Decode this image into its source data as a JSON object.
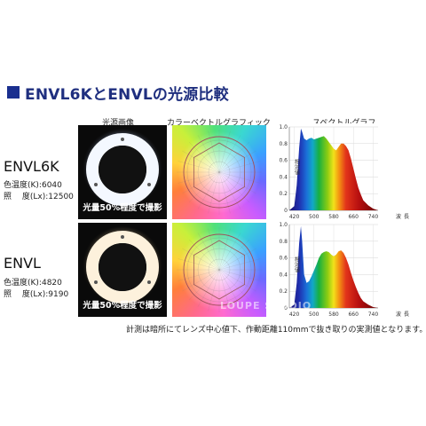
{
  "title": "ENVL6KとENVLの光源比較",
  "columns": {
    "photo": "光源画像",
    "color_graphic": "カラーベクトルグラフィック",
    "spectrum": "スペクトルグラフ"
  },
  "models": [
    {
      "name": "ENVL6K",
      "color_temp_label": "色温度(K):",
      "color_temp_value": "6040",
      "illuminance_label": "照　 度(Lx):",
      "illuminance_value": "12500",
      "photo_caption": "光量50%程度で撮影",
      "ring_color": "#f4f8ff",
      "glow_color": "#b8c8f0"
    },
    {
      "name": "ENVL",
      "color_temp_label": "色温度(K):",
      "color_temp_value": "4820",
      "illuminance_label": "照　 度(Lx):",
      "illuminance_value": "9190",
      "photo_caption": "光量50%程度で撮影",
      "ring_color": "#fdf1dc",
      "glow_color": "#e8cfa0"
    }
  ],
  "spectrum_axis": {
    "y_ticks": [
      "1.0",
      "0.8",
      "0.6",
      "0.4",
      "0.2",
      "0"
    ],
    "x_ticks": [
      "420",
      "500",
      "580",
      "660",
      "740"
    ],
    "y_label": "相対値",
    "x_label": "波長"
  },
  "watermark": "LOUPE STUDIO",
  "footnote": "計測は暗所にてレンズ中心値下、作動距離110mmで抜き取りの実測値となります。",
  "chart_data": [
    {
      "type": "area",
      "x": [
        400,
        420,
        430,
        440,
        447,
        452,
        460,
        470,
        480,
        490,
        500,
        510,
        520,
        530,
        540,
        550,
        560,
        570,
        580,
        590,
        600,
        610,
        620,
        630,
        640,
        650,
        660,
        670,
        680,
        690,
        700,
        720,
        740,
        760
      ],
      "values": [
        0.0,
        0.05,
        0.3,
        0.75,
        0.98,
        0.94,
        0.86,
        0.84,
        0.86,
        0.87,
        0.85,
        0.86,
        0.87,
        0.88,
        0.89,
        0.86,
        0.82,
        0.78,
        0.74,
        0.72,
        0.76,
        0.8,
        0.8,
        0.77,
        0.72,
        0.62,
        0.5,
        0.38,
        0.27,
        0.19,
        0.12,
        0.06,
        0.02,
        0.0
      ],
      "ylim": [
        0,
        1.0
      ],
      "xlim": [
        400,
        760
      ],
      "y_ticks": [
        0,
        0.2,
        0.4,
        0.6,
        0.8,
        1.0
      ],
      "x_ticks": [
        420,
        500,
        580,
        660,
        740
      ],
      "grid": true
    },
    {
      "type": "area",
      "x": [
        400,
        420,
        430,
        440,
        447,
        452,
        460,
        470,
        480,
        490,
        500,
        510,
        520,
        530,
        540,
        550,
        560,
        570,
        580,
        590,
        600,
        610,
        620,
        630,
        640,
        650,
        660,
        670,
        680,
        690,
        700,
        720,
        740,
        760
      ],
      "values": [
        0.0,
        0.04,
        0.3,
        0.78,
        0.98,
        0.8,
        0.4,
        0.3,
        0.32,
        0.38,
        0.45,
        0.52,
        0.6,
        0.65,
        0.67,
        0.68,
        0.67,
        0.64,
        0.62,
        0.64,
        0.68,
        0.69,
        0.66,
        0.6,
        0.52,
        0.42,
        0.33,
        0.25,
        0.18,
        0.12,
        0.08,
        0.04,
        0.01,
        0.0
      ],
      "ylim": [
        0,
        1.0
      ],
      "xlim": [
        400,
        760
      ],
      "y_ticks": [
        0,
        0.2,
        0.4,
        0.6,
        0.8,
        1.0
      ],
      "x_ticks": [
        420,
        500,
        580,
        660,
        740
      ],
      "grid": true
    }
  ]
}
